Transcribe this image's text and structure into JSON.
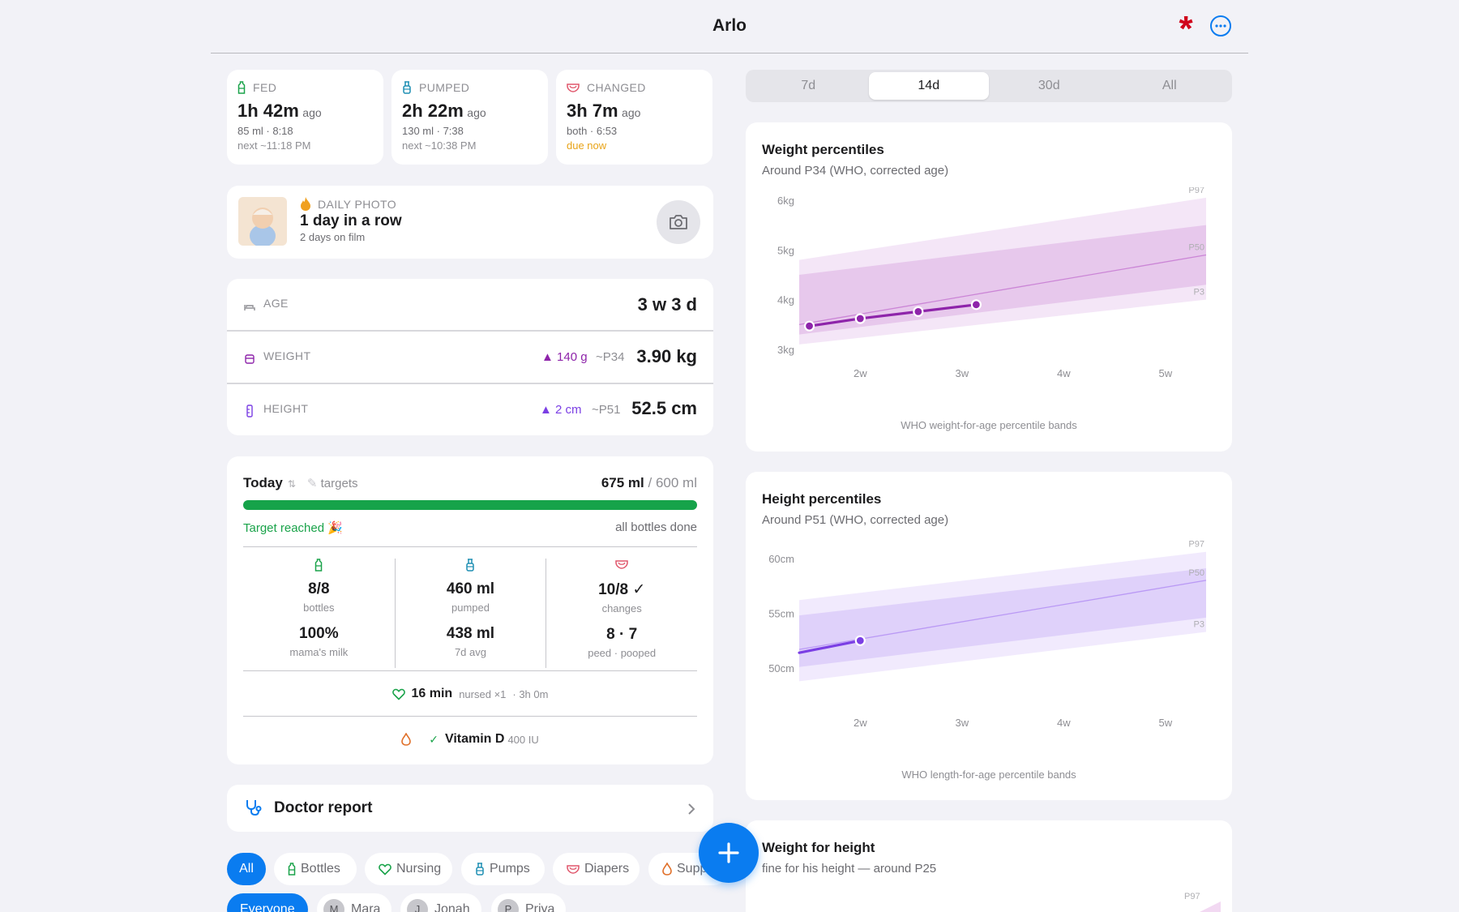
{
  "header": {
    "title": "Arlo"
  },
  "summary": [
    {
      "label": "FED",
      "time": "1h 42m",
      "ago": "ago",
      "line1": "85 ml · 8:18",
      "line2": "next ~11:18 PM",
      "line2_style": "muted",
      "color": "#1aa34a"
    },
    {
      "label": "PUMPED",
      "time": "2h 22m",
      "ago": "ago",
      "line1": "130 ml · 7:38",
      "line2": "next ~10:38 PM",
      "line2_style": "muted",
      "color": "#1f8fb3"
    },
    {
      "label": "CHANGED",
      "time": "3h 7m",
      "ago": "ago",
      "line1": "both · 6:53",
      "line2": "due now",
      "line2_style": "warn",
      "color": "#e0566b"
    }
  ],
  "photo": {
    "label": "DAILY PHOTO",
    "title": "1 day in a row",
    "sub": "2 days on film"
  },
  "metrics": {
    "age": {
      "label": "AGE",
      "value": "3 w 3 d"
    },
    "weight": {
      "label": "WEIGHT",
      "delta": "▲ 140 g",
      "pct": "~P34",
      "value": "3.90 kg"
    },
    "height": {
      "label": "HEIGHT",
      "delta": "▲ 2 cm",
      "pct": "~P51",
      "value": "52.5 cm"
    }
  },
  "today": {
    "title": "Today",
    "swap": "⇅",
    "targets": "targets",
    "amount": "675 ml",
    "target": "/ 600 ml",
    "progress": 1.0,
    "reached": "Target reached 🎉",
    "done": "all bottles done",
    "cols": [
      {
        "v1": "8/8",
        "l1": "bottles",
        "v2": "100%",
        "l2": "mama's milk"
      },
      {
        "v1": "460 ml",
        "l1": "pumped",
        "v2": "438 ml",
        "l2": "7d avg"
      },
      {
        "v1": "10/8 ✓",
        "l1": "changes",
        "v2": "8 · 7",
        "l2": "peed · pooped"
      }
    ],
    "nursing": {
      "value": "16 min",
      "detail": "nursed ×1",
      "since": "· 3h 0m"
    },
    "vitamin": {
      "check": "✓",
      "name": "Vitamin D",
      "dose": "400 IU"
    }
  },
  "doctor": {
    "label": "Doctor report"
  },
  "filters": [
    "All",
    "Bottles",
    "Nursing",
    "Pumps",
    "Diapers",
    "Supp"
  ],
  "people": [
    {
      "name": "Everyone",
      "initial": ""
    },
    {
      "name": "Mara",
      "initial": "M"
    },
    {
      "name": "Jonah",
      "initial": "J"
    },
    {
      "name": "Priya",
      "initial": "P"
    }
  ],
  "range_tabs": [
    "7d",
    "14d",
    "30d",
    "All"
  ],
  "range_selected": "14d",
  "chart_data": [
    {
      "type": "line",
      "title": "Weight percentiles",
      "subtitle": "Around P34 (WHO, corrected age)",
      "caption": "WHO weight-for-age percentile bands",
      "x_ticks": [
        "2w",
        "3w",
        "4w",
        "5w"
      ],
      "y_ticks": [
        "6kg",
        "5kg",
        "4kg",
        "3kg"
      ],
      "ylim": [
        3,
        6
      ],
      "xlim": [
        1.4,
        5.4
      ],
      "percentile_labels": [
        "P97",
        "P50",
        "P3"
      ],
      "bands": {
        "p3": [
          3.1,
          4.0
        ],
        "p15": [
          3.3,
          4.3
        ],
        "p50": [
          3.5,
          4.9
        ],
        "p85": [
          4.5,
          5.5
        ],
        "p97": [
          4.8,
          6.05
        ]
      },
      "series": [
        {
          "x": [
            1.5,
            2.0,
            2.57,
            3.14
          ],
          "values": [
            3.47,
            3.62,
            3.76,
            3.9
          ]
        }
      ],
      "color": "#8e24aa",
      "band_color": "#b44fc4"
    },
    {
      "type": "line",
      "title": "Height percentiles",
      "subtitle": "Around P51 (WHO, corrected age)",
      "caption": "WHO length-for-age percentile bands",
      "x_ticks": [
        "2w",
        "3w",
        "4w",
        "5w"
      ],
      "y_ticks": [
        "60cm",
        "55cm",
        "50cm"
      ],
      "ylim": [
        47.2,
        60.8
      ],
      "xlim": [
        1.4,
        5.4
      ],
      "percentile_labels": [
        "P97",
        "P50",
        "P3"
      ],
      "bands": {
        "p3": [
          48.8,
          53.3
        ],
        "p15": [
          50.1,
          54.6
        ],
        "p50": [
          51.7,
          58.0
        ],
        "p85": [
          54.8,
          59.1
        ],
        "p97": [
          56.2,
          60.6
        ]
      },
      "series": [
        {
          "x": [
            1.4,
            2.0
          ],
          "values": [
            51.4,
            52.5
          ]
        }
      ],
      "color": "#7b3fe4",
      "band_color": "#9b6cf0"
    },
    {
      "type": "line",
      "title": "Weight for height",
      "subtitle": "fine for his height — around P25",
      "percentile_labels": [
        "P97"
      ]
    }
  ]
}
